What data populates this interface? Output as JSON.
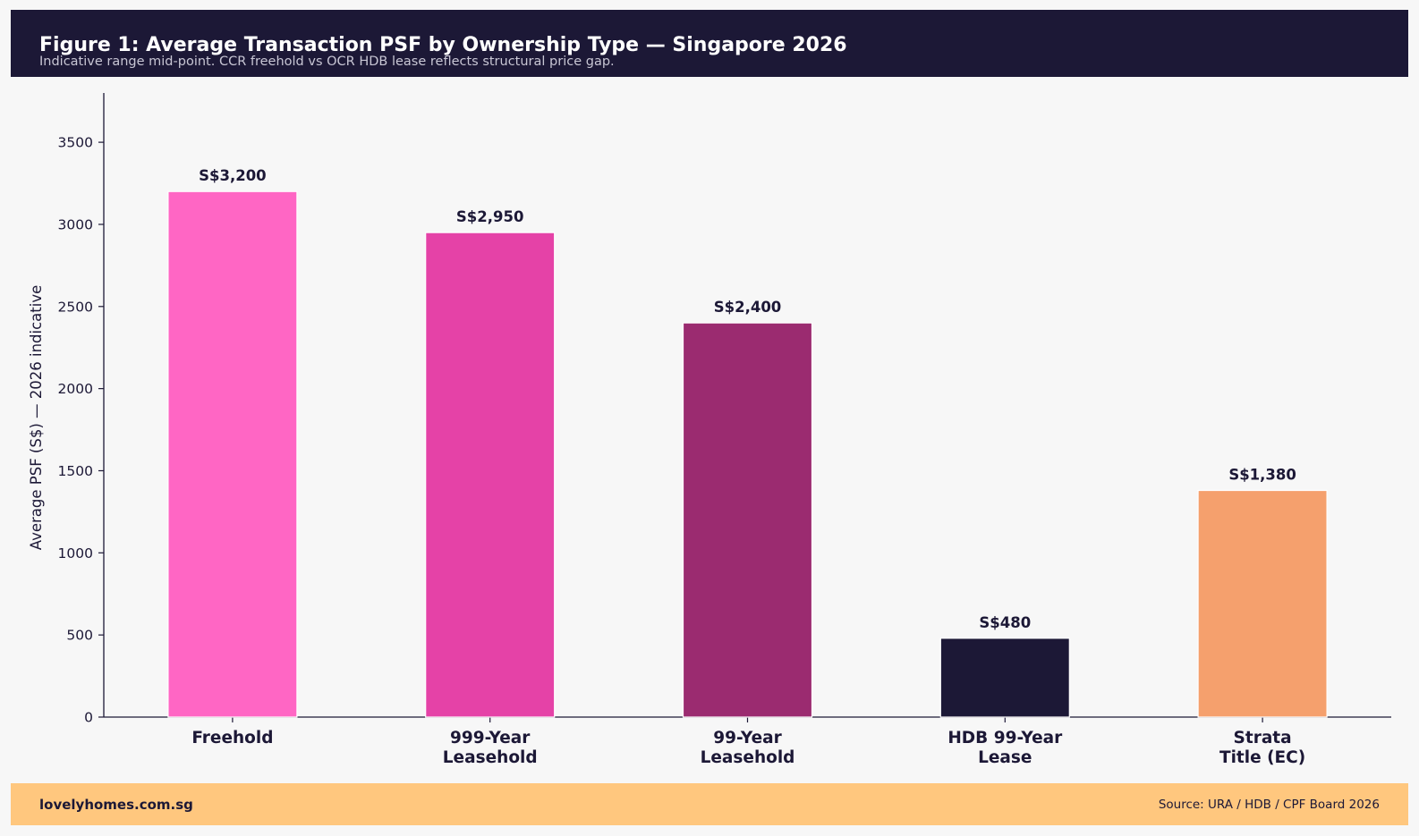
{
  "header": {
    "title": "Figure 1: Average Transaction PSF by Ownership Type — Singapore 2026",
    "subtitle": "Indicative range mid-point. CCR freehold vs OCR HDB lease reflects structural price gap."
  },
  "footer": {
    "brand": "lovelyhomes.com.sg",
    "source": "Source: URA / HDB / CPF Board 2026"
  },
  "chart_data": {
    "type": "bar",
    "categories": [
      [
        "Freehold"
      ],
      [
        "999-Year",
        "Leasehold"
      ],
      [
        "99-Year",
        "Leasehold"
      ],
      [
        "HDB 99-Year",
        "Lease"
      ],
      [
        "Strata",
        "Title (EC)"
      ]
    ],
    "values": [
      3200,
      2950,
      2400,
      480,
      1380
    ],
    "value_labels": [
      "S$3,200",
      "S$2,950",
      "S$2,400",
      "S$480",
      "S$1,380"
    ],
    "colors": [
      "#ff66c4",
      "#e542a7",
      "#9b2b70",
      "#1c1836",
      "#f5a06d"
    ],
    "title": "Figure 1: Average Transaction PSF by Ownership Type — Singapore 2026",
    "xlabel": "",
    "ylabel": "Average PSF (S$) — 2026 indicative",
    "ylim": [
      0,
      3800
    ],
    "yticks": [
      0,
      500,
      1000,
      1500,
      2000,
      2500,
      3000,
      3500
    ],
    "grid": false,
    "legend": "none"
  }
}
